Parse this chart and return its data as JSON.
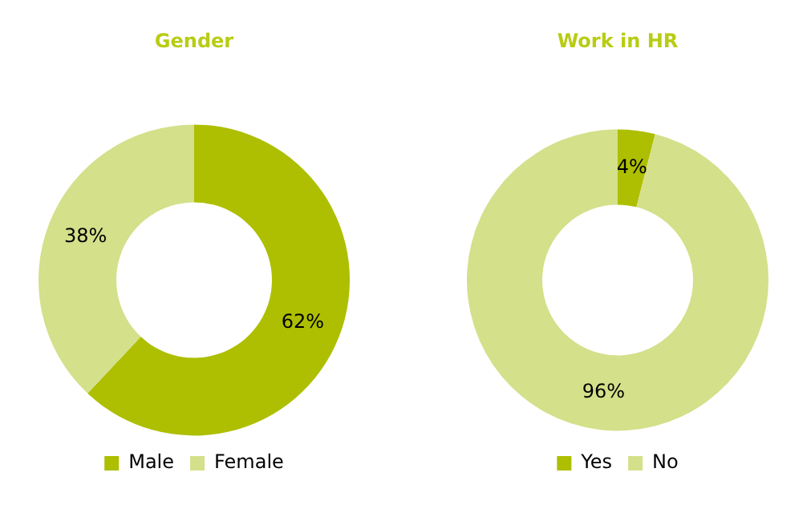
{
  "chart_data": [
    {
      "type": "donut",
      "title": "Gender",
      "categories": [
        "Male",
        "Female"
      ],
      "values": [
        62,
        38
      ],
      "colors": [
        "#adbf00",
        "#d4e08a"
      ],
      "value_labels": [
        "62%",
        "38%"
      ],
      "legend": "bottom"
    },
    {
      "type": "donut",
      "title": "Work in HR",
      "categories": [
        "Yes",
        "No"
      ],
      "values": [
        4,
        96
      ],
      "colors": [
        "#adbf00",
        "#d4e08a"
      ],
      "value_labels": [
        "4%",
        "96%"
      ],
      "legend": "bottom"
    }
  ]
}
